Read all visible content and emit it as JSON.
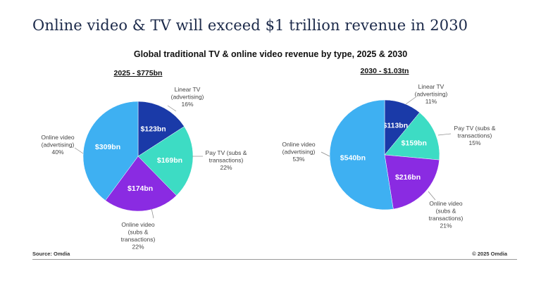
{
  "headline": "Online video & TV will exceed $1 trillion revenue in 2030",
  "source": "Source: Omdia",
  "copyright": "© 2025 Omdia",
  "colors": {
    "linear_tv_advertising": "#1a3aa8",
    "pay_tv": "#3ddcc4",
    "online_video_subs": "#8a2be2",
    "online_video_advertising": "#3eb0f2"
  },
  "chart_data": [
    {
      "type": "pie",
      "title": "Global traditional TV & online video revenue by type, 2025 & 2030",
      "subtitle": "2025 - $775bn",
      "slices": [
        {
          "label_lines": [
            "Linear TV",
            "(advertising)"
          ],
          "value": 123,
          "value_label": "$123bn",
          "percent": "16%",
          "color": "#1a3aa8"
        },
        {
          "label_lines": [
            "Pay TV (subs &",
            "transactions)"
          ],
          "value": 169,
          "value_label": "$169bn",
          "percent": "22%",
          "color": "#3ddcc4"
        },
        {
          "label_lines": [
            "Online video",
            "(subs &",
            "transactions)"
          ],
          "value": 174,
          "value_label": "$174bn",
          "percent": "22%",
          "color": "#8a2be2"
        },
        {
          "label_lines": [
            "Online video",
            "(advertising)"
          ],
          "value": 309,
          "value_label": "$309bn",
          "percent": "40%",
          "color": "#3eb0f2"
        }
      ]
    },
    {
      "type": "pie",
      "subtitle": "2030 - $1.03tn",
      "slices": [
        {
          "label_lines": [
            "Linear TV",
            "(advertising)"
          ],
          "value": 113,
          "value_label": "$113bn",
          "percent": "11%",
          "color": "#1a3aa8"
        },
        {
          "label_lines": [
            "Pay TV (subs &",
            "transactions)"
          ],
          "value": 159,
          "value_label": "$159bn",
          "percent": "15%",
          "color": "#3ddcc4"
        },
        {
          "label_lines": [
            "Online video",
            "(subs &",
            "transactions)"
          ],
          "value": 216,
          "value_label": "$216bn",
          "percent": "21%",
          "color": "#8a2be2"
        },
        {
          "label_lines": [
            "Online video",
            "(advertising)"
          ],
          "value": 540,
          "value_label": "$540bn",
          "percent": "53%",
          "color": "#3eb0f2"
        }
      ]
    }
  ]
}
